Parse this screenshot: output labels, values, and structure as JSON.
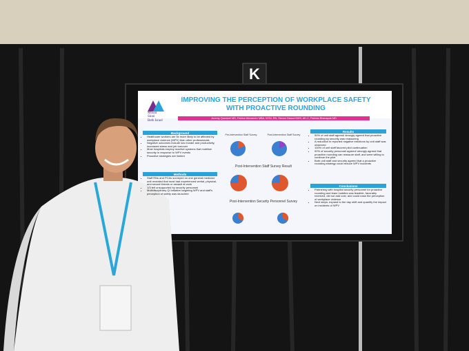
{
  "sign": "K",
  "poster": {
    "logo": [
      "Mount",
      "Sinai",
      "Beth Israel"
    ],
    "title": "IMPROVING THE PERCEPTION OF WORKPLACE SAFETY WITH PROACTIVE ROUNDING",
    "authors": "Jeremy Quentzel MD, Patrice Alexandre MBA, MSN, RN, Steven Daoud MHS, AE-C, Patricia Bhanapuk MD",
    "background": {
      "heading": "Background",
      "items": [
        "Healthcare workers are 5x more likely to be affected by workplace violence (WPV) than other professionals",
        "Negative outcomes include low morale and productivity, increased stress and job turnover",
        "Most hospitals employ reactive systems that mobilize security in response to WPV events",
        "Proactive strategies are limited"
      ]
    },
    "methods": {
      "heading": "Methods",
      "items": [
        "Staff RNs and PCAs surveyed on one general medicine unit revealed that most had experienced verbal, physical, and sexual threats or assault at work",
        "1/3 felt unsupported by security personnel",
        "Multidisciplinary QI initiative targeting WPV and staff's perception of safety was launched"
      ]
    },
    "results": {
      "heading": "Results",
      "items": [
        "90% of unit staff agreed/ strongly agreed that proactive rounding by security was reassuring",
        "A reduction in reported negative emotions by unit staff was observed",
        "100% of unit staff favored pilot continuation",
        "92% of security personnel agreed/ strongly agreed that proactive rounding can reassure staff, and were willing to continue the pilot",
        "Both unit staff and security agreed that a proactive rounding strategy could reduce WPV incidents"
      ]
    },
    "conclusions": {
      "heading": "Conclusions",
      "items": [
        "Partnering with hospital security personnel for proactive rounding and team huddles was feasible, favorably received, did not add cost, and could ease the perception of workplace violence",
        "Next steps: expand to the day shift and quantify the impact on incidents of WPV"
      ]
    },
    "charts": [
      "Pre-intervention Staff Survey",
      "Post-Intervention Staff Survey",
      "Post-Intervention Staff Survey Result",
      "Post-Intervention Security Personnel Survey"
    ]
  }
}
